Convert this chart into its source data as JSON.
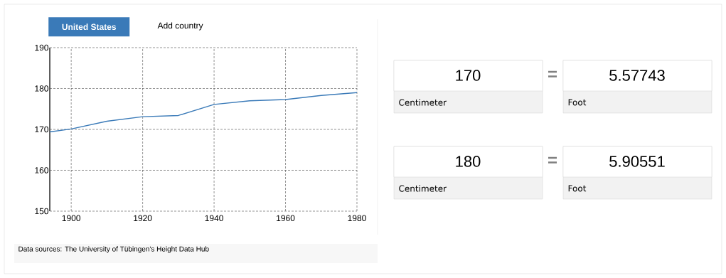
{
  "chart_data": [
    {
      "type": "line",
      "x": [
        1894,
        1900,
        1910,
        1920,
        1930,
        1940,
        1950,
        1960,
        1970,
        1980
      ],
      "series": [
        {
          "name": "United States",
          "color": "#3a7ab8",
          "values": [
            169.4,
            170.1,
            172.0,
            173.1,
            173.4,
            176.1,
            177.0,
            177.3,
            178.3,
            179.0
          ]
        }
      ],
      "xlim": [
        1894,
        1980
      ],
      "ylim": [
        150,
        190
      ],
      "xticks": [
        1900,
        1920,
        1940,
        1960,
        1980
      ],
      "yticks": [
        150,
        160,
        170,
        180,
        190
      ],
      "grid": true,
      "legend": "top left",
      "annotations": [
        "Add country",
        "Data sources: The University of Tübingen's Height Data Hub"
      ]
    },
    {
      "type": "other",
      "annotations": [
        "170",
        "=",
        "5.57743",
        "Centimeter",
        "Foot",
        "180",
        "=",
        "5.90551",
        "Centimeter",
        "Foot"
      ]
    }
  ]
}
